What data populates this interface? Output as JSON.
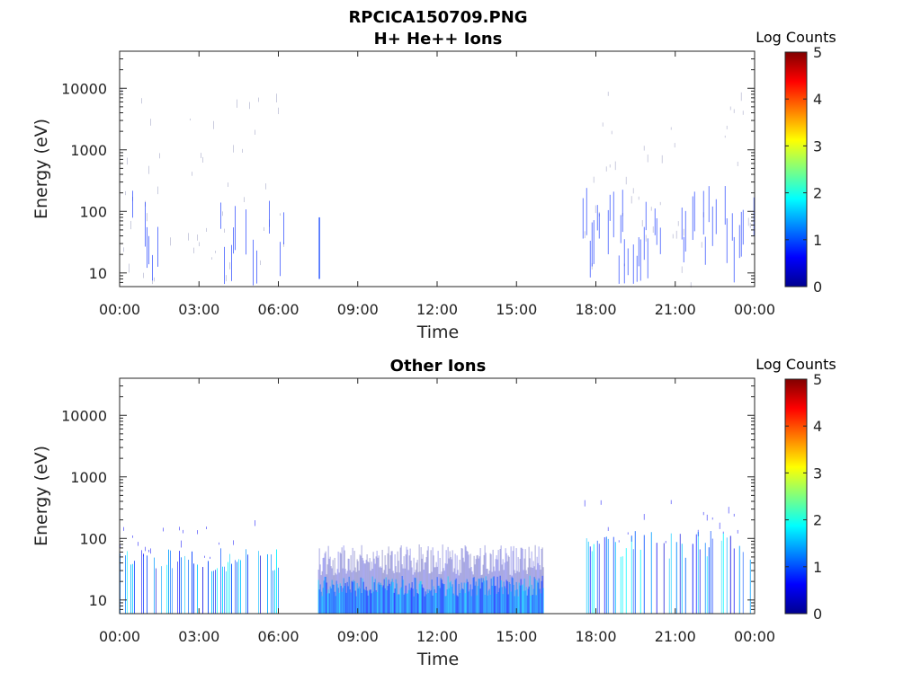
{
  "figure_title": "RPCICA150709.PNG",
  "chart_data": [
    {
      "type": "heatmap",
      "title": "H+ He++ Ions",
      "xlabel": "Time",
      "ylabel": "Energy (eV)",
      "x_ticks": [
        "00:00",
        "03:00",
        "06:00",
        "09:00",
        "12:00",
        "15:00",
        "18:00",
        "21:00",
        "00:00"
      ],
      "y_ticks": [
        "10",
        "100",
        "1000",
        "10000"
      ],
      "y_scale": "log",
      "ylim": [
        6,
        40000
      ],
      "xlim_hours": [
        0,
        24
      ],
      "colorbar": {
        "label": "Log Counts",
        "ticks": [
          "0",
          "1",
          "2",
          "3",
          "4",
          "5"
        ],
        "range": [
          0,
          5
        ],
        "colormap": "jet"
      },
      "activity": [
        {
          "start_hour": 0.0,
          "end_hour": 6.2,
          "density": "sparse",
          "energy_eV": [
            6,
            10000
          ],
          "log_counts": [
            0,
            1
          ]
        },
        {
          "start_hour": 7.5,
          "end_hour": 7.6,
          "density": "spike",
          "energy_eV": [
            8,
            80
          ],
          "log_counts": [
            0,
            1
          ]
        },
        {
          "start_hour": 17.5,
          "end_hour": 24.0,
          "density": "sparse",
          "energy_eV": [
            6,
            10000
          ],
          "log_counts": [
            0,
            1
          ]
        }
      ]
    },
    {
      "type": "heatmap",
      "title": "Other Ions",
      "xlabel": "Time",
      "ylabel": "Energy (eV)",
      "x_ticks": [
        "00:00",
        "03:00",
        "06:00",
        "09:00",
        "12:00",
        "15:00",
        "18:00",
        "21:00",
        "00:00"
      ],
      "y_ticks": [
        "10",
        "100",
        "1000",
        "10000"
      ],
      "y_scale": "log",
      "ylim": [
        6,
        40000
      ],
      "xlim_hours": [
        0,
        24
      ],
      "colorbar": {
        "label": "Log Counts",
        "ticks": [
          "0",
          "1",
          "2",
          "3",
          "4",
          "5"
        ],
        "range": [
          0,
          5
        ],
        "colormap": "jet"
      },
      "activity": [
        {
          "start_hour": 0.0,
          "end_hour": 6.0,
          "density": "medium",
          "energy_eV": [
            6,
            200
          ],
          "log_counts": [
            0,
            2
          ]
        },
        {
          "start_hour": 7.5,
          "end_hour": 16.0,
          "density": "dense",
          "energy_eV": [
            6,
            80
          ],
          "log_counts": [
            0,
            2
          ]
        },
        {
          "start_hour": 17.5,
          "end_hour": 24.0,
          "density": "medium",
          "energy_eV": [
            6,
            500
          ],
          "log_counts": [
            0,
            2
          ]
        }
      ]
    }
  ]
}
